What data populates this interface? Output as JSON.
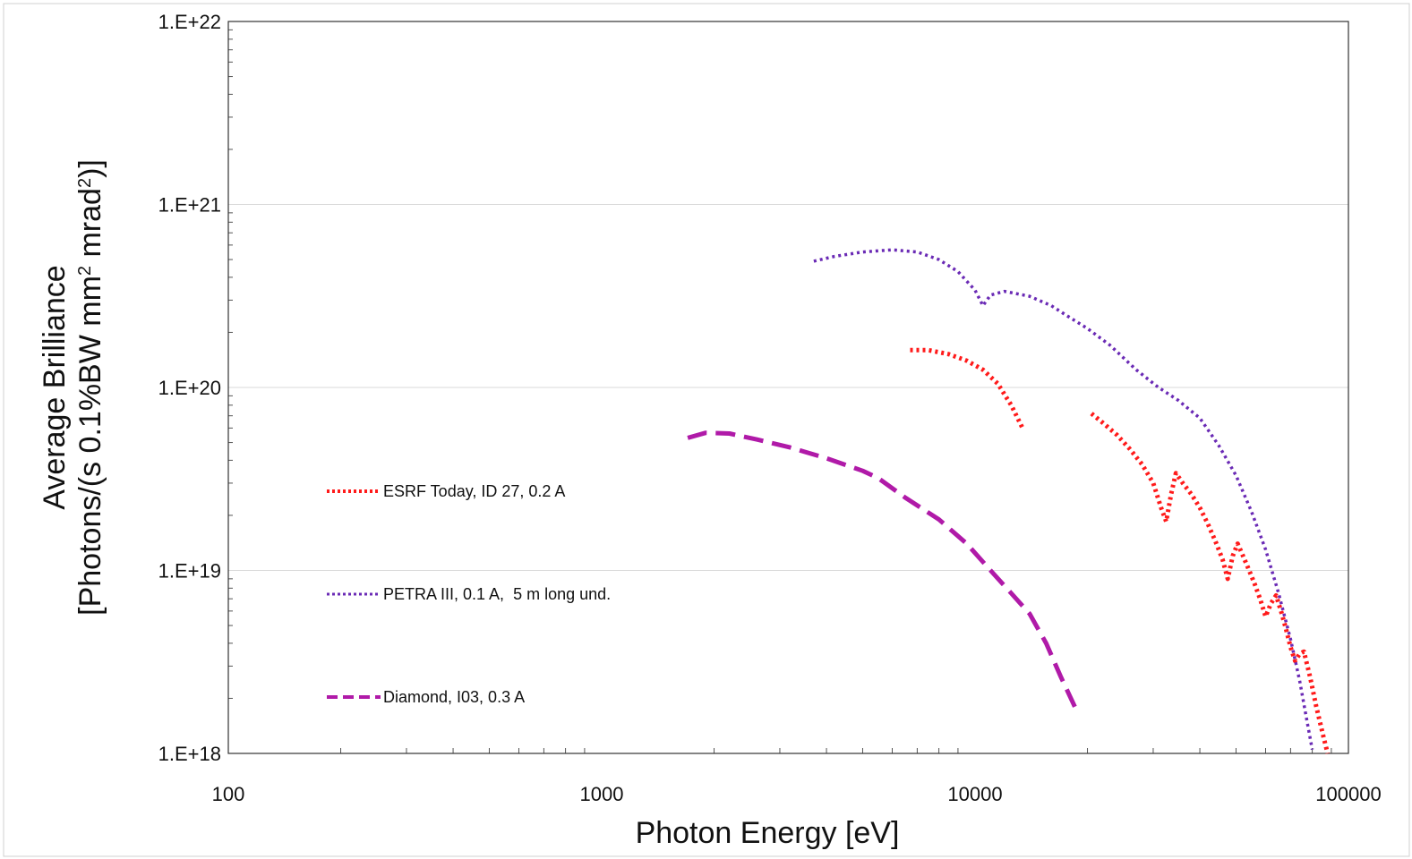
{
  "chart_data": {
    "type": "line",
    "title": "",
    "xlabel": "Photon Energy [eV]",
    "ylabel_line1": "Average Brilliance",
    "ylabel_line2_prefix": "[Photons/(s 0.1%BW mm",
    "ylabel_line2_mid": " mrad",
    "ylabel_line2_suffix": ")]",
    "ylabel_sup": "2",
    "x_scale": "log",
    "y_scale": "log",
    "xlim": [
      100,
      100000
    ],
    "ylim": [
      1e+18,
      1e+22
    ],
    "x_ticks": [
      "100",
      "1000",
      "10000",
      "100000"
    ],
    "y_ticks": [
      "1.E+18",
      "1.E+19",
      "1.E+20",
      "1.E+21",
      "1.E+22"
    ],
    "grid": true,
    "legend_position": "left-center",
    "series": [
      {
        "name": "ESRF Today, ID 27, 0.2 A",
        "color": "#ff1a1a",
        "dash": "dotted",
        "segments": [
          [
            [
              6700,
              1.6e+20
            ],
            [
              7500,
              1.6e+20
            ],
            [
              8500,
              1.52e+20
            ],
            [
              9500,
              1.4e+20
            ],
            [
              10500,
              1.25e+20
            ],
            [
              11500,
              1.05e+20
            ],
            [
              12500,
              8e+19
            ],
            [
              13400,
              6e+19
            ]
          ],
          [
            [
              20500,
              7.2e+19
            ],
            [
              22000,
              6.4e+19
            ],
            [
              24000,
              5.5e+19
            ],
            [
              26000,
              4.6e+19
            ],
            [
              28000,
              3.8e+19
            ],
            [
              30000,
              3e+19
            ],
            [
              31500,
              2.2e+19
            ],
            [
              32500,
              1.85e+19
            ],
            [
              33500,
              2.6e+19
            ],
            [
              34500,
              3.4e+19
            ],
            [
              36000,
              3e+19
            ],
            [
              38000,
              2.6e+19
            ],
            [
              40000,
              2.2e+19
            ],
            [
              42000,
              1.8e+19
            ],
            [
              44000,
              1.45e+19
            ],
            [
              46000,
              1.15e+19
            ],
            [
              47500,
              9e+18
            ],
            [
              49000,
              1.2e+19
            ],
            [
              50500,
              1.4e+19
            ],
            [
              52000,
              1.22e+19
            ],
            [
              54000,
              1.02e+19
            ],
            [
              56000,
              8.5e+18
            ],
            [
              58000,
              7e+18
            ],
            [
              60000,
              5.6e+18
            ],
            [
              62000,
              6.6e+18
            ],
            [
              64000,
              7.3e+18
            ],
            [
              66000,
              6e+18
            ],
            [
              68000,
              4.8e+18
            ],
            [
              70000,
              3.8e+18
            ],
            [
              72000,
              3.2e+18
            ],
            [
              74000,
              3.5e+18
            ],
            [
              76000,
              3.6e+18
            ],
            [
              79000,
              2.6e+18
            ],
            [
              82000,
              1.8e+18
            ],
            [
              86000,
              1.2e+18
            ],
            [
              88000,
              1e+18
            ]
          ]
        ]
      },
      {
        "name": "PETRA III, 0.1 A,  5 m long und.",
        "color": "#6a2ab5",
        "dash": "dotted",
        "segments": [
          [
            [
              3700,
              4.9e+20
            ],
            [
              4200,
              5.2e+20
            ],
            [
              5000,
              5.5e+20
            ],
            [
              6000,
              5.65e+20
            ],
            [
              7000,
              5.5e+20
            ],
            [
              8000,
              5e+20
            ],
            [
              9000,
              4.3e+20
            ],
            [
              10000,
              3.4e+20
            ],
            [
              10500,
              2.8e+20
            ],
            [
              11000,
              3.2e+20
            ],
            [
              12000,
              3.35e+20
            ],
            [
              14000,
              3.15e+20
            ],
            [
              16000,
              2.8e+20
            ],
            [
              18000,
              2.4e+20
            ],
            [
              20000,
              2.1e+20
            ],
            [
              23000,
              1.7e+20
            ],
            [
              27000,
              1.25e+20
            ],
            [
              31000,
              1e+20
            ],
            [
              35000,
              8.5e+19
            ],
            [
              40000,
              6.8e+19
            ],
            [
              45000,
              4.8e+19
            ],
            [
              50000,
              3.3e+19
            ],
            [
              55000,
              2.1e+19
            ],
            [
              60000,
              1.3e+19
            ],
            [
              65000,
              7.5e+18
            ],
            [
              70000,
              4.2e+18
            ],
            [
              74000,
              2.5e+18
            ],
            [
              77000,
              1.6e+18
            ],
            [
              80000,
              1.05e+18
            ]
          ]
        ]
      },
      {
        "name": "Diamond, I03, 0.3 A",
        "color": "#b01aa8",
        "dash": "dashed",
        "segments": [
          [
            [
              1700,
              5.3e+19
            ],
            [
              1900,
              5.65e+19
            ],
            [
              2200,
              5.6e+19
            ],
            [
              2600,
              5.2e+19
            ],
            [
              3200,
              4.7e+19
            ],
            [
              4000,
              4.1e+19
            ],
            [
              5000,
              3.5e+19
            ],
            [
              5500,
              3.2e+19
            ],
            [
              6500,
              2.5e+19
            ],
            [
              8000,
              1.9e+19
            ],
            [
              9500,
              1.4e+19
            ],
            [
              11000,
              1e+19
            ],
            [
              12500,
              7.5e+18
            ],
            [
              14000,
              5.8e+18
            ],
            [
              15500,
              4e+18
            ],
            [
              17000,
              2.6e+18
            ],
            [
              18500,
              1.8e+18
            ]
          ]
        ]
      }
    ]
  }
}
